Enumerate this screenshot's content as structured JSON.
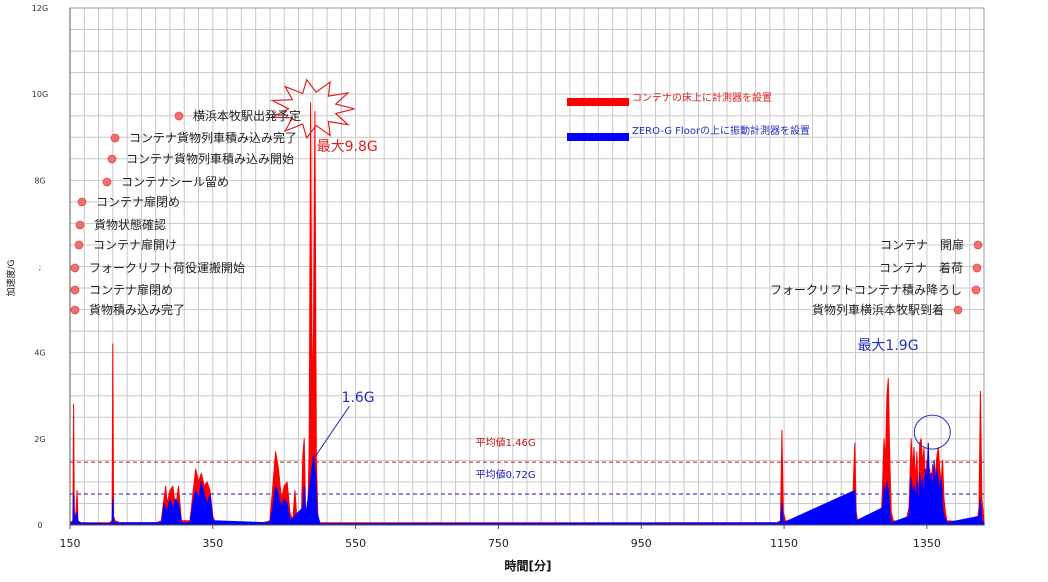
{
  "chart_data": {
    "type": "line",
    "title": "",
    "xlabel": "時間[分]",
    "ylabel": "加速度/G",
    "xlim": [
      150,
      1430
    ],
    "ylim": [
      0,
      12
    ],
    "x_ticks": [
      150,
      350,
      550,
      750,
      950,
      1150,
      1350
    ],
    "y_ticks": [
      {
        "value": 0,
        "label": "0"
      },
      {
        "value": 2,
        "label": "2G"
      },
      {
        "value": 4,
        "label": "4G"
      },
      {
        "value": 6,
        "label": ";"
      },
      {
        "value": 8,
        "label": "8G"
      },
      {
        "value": 10,
        "label": "10G"
      },
      {
        "value": 12,
        "label": "12G"
      }
    ],
    "grid": true,
    "legend_position": "top-center",
    "series": [
      {
        "name": "コンテナの床上に計測器を設置",
        "color": "#ff0000",
        "points": [
          [
            150,
            0.05
          ],
          [
            154,
            0.1
          ],
          [
            155,
            2.8
          ],
          [
            156,
            0.3
          ],
          [
            158,
            0.2
          ],
          [
            160,
            0.8
          ],
          [
            161,
            0.1
          ],
          [
            165,
            0.05
          ],
          [
            205,
            0.05
          ],
          [
            209,
            0.1
          ],
          [
            210,
            4.2
          ],
          [
            211,
            0.2
          ],
          [
            213,
            0.1
          ],
          [
            220,
            0.05
          ],
          [
            270,
            0.05
          ],
          [
            278,
            0.1
          ],
          [
            280,
            0.4
          ],
          [
            284,
            0.9
          ],
          [
            286,
            0.5
          ],
          [
            290,
            0.8
          ],
          [
            294,
            0.9
          ],
          [
            298,
            0.4
          ],
          [
            302,
            0.9
          ],
          [
            306,
            0.1
          ],
          [
            318,
            0.1
          ],
          [
            322,
            0.7
          ],
          [
            326,
            1.3
          ],
          [
            330,
            1.0
          ],
          [
            334,
            1.2
          ],
          [
            338,
            0.9
          ],
          [
            342,
            1.0
          ],
          [
            346,
            0.8
          ],
          [
            350,
            0.2
          ],
          [
            354,
            0.05
          ],
          [
            420,
            0.05
          ],
          [
            430,
            0.1
          ],
          [
            434,
            0.9
          ],
          [
            438,
            1.7
          ],
          [
            442,
            1.3
          ],
          [
            446,
            0.6
          ],
          [
            450,
            0.9
          ],
          [
            454,
            1.0
          ],
          [
            458,
            0.3
          ],
          [
            462,
            0.1
          ],
          [
            465,
            0.8
          ],
          [
            468,
            0.1
          ],
          [
            474,
            0.2
          ],
          [
            476,
            1.6
          ],
          [
            478,
            2.0
          ],
          [
            480,
            0.4
          ],
          [
            483,
            0.3
          ],
          [
            485,
            1.8
          ],
          [
            487,
            9.8
          ],
          [
            489,
            3.0
          ],
          [
            491,
            4.5
          ],
          [
            493,
            9.6
          ],
          [
            495,
            1.5
          ],
          [
            497,
            0.2
          ],
          [
            500,
            0.05
          ],
          [
            1140,
            0.05
          ],
          [
            1145,
            0.1
          ],
          [
            1147,
            2.2
          ],
          [
            1149,
            0.3
          ],
          [
            1152,
            0.1
          ],
          [
            1220,
            0.05
          ],
          [
            1225,
            0.2
          ],
          [
            1230,
            0.05
          ],
          [
            1245,
            0.05
          ],
          [
            1249,
            1.9
          ],
          [
            1251,
            0.3
          ],
          [
            1253,
            0.1
          ],
          [
            1270,
            0.05
          ],
          [
            1286,
            0.1
          ],
          [
            1288,
            1.0
          ],
          [
            1290,
            2.0
          ],
          [
            1292,
            1.5
          ],
          [
            1294,
            3.0
          ],
          [
            1296,
            3.4
          ],
          [
            1298,
            1.6
          ],
          [
            1300,
            0.3
          ],
          [
            1303,
            0.1
          ],
          [
            1320,
            0.05
          ],
          [
            1325,
            0.4
          ],
          [
            1328,
            2.0
          ],
          [
            1330,
            1.3
          ],
          [
            1332,
            1.8
          ],
          [
            1334,
            1.0
          ],
          [
            1336,
            1.7
          ],
          [
            1338,
            0.5
          ],
          [
            1340,
            1.9
          ],
          [
            1342,
            2.0
          ],
          [
            1344,
            1.4
          ],
          [
            1346,
            1.8
          ],
          [
            1348,
            0.9
          ],
          [
            1350,
            1.5
          ],
          [
            1352,
            1.1
          ],
          [
            1354,
            1.3
          ],
          [
            1356,
            0.9
          ],
          [
            1358,
            1.4
          ],
          [
            1360,
            0.7
          ],
          [
            1362,
            1.2
          ],
          [
            1364,
            1.6
          ],
          [
            1366,
            1.8
          ],
          [
            1368,
            1.3
          ],
          [
            1370,
            1.0
          ],
          [
            1372,
            1.5
          ],
          [
            1374,
            0.6
          ],
          [
            1376,
            0.3
          ],
          [
            1378,
            0.1
          ],
          [
            1420,
            0.05
          ],
          [
            1423,
            0.4
          ],
          [
            1425,
            3.1
          ],
          [
            1427,
            0.6
          ],
          [
            1430,
            0.1
          ]
        ]
      },
      {
        "name": "ZERO-G Floorの上に振動計測器を設置",
        "color": "#0000ff",
        "points": [
          [
            150,
            0.03
          ],
          [
            154,
            0.05
          ],
          [
            155,
            0.7
          ],
          [
            156,
            0.1
          ],
          [
            160,
            0.3
          ],
          [
            161,
            0.05
          ],
          [
            205,
            0.03
          ],
          [
            209,
            0.05
          ],
          [
            210,
            0.6
          ],
          [
            211,
            0.05
          ],
          [
            278,
            0.05
          ],
          [
            282,
            0.5
          ],
          [
            286,
            0.3
          ],
          [
            290,
            0.6
          ],
          [
            294,
            0.4
          ],
          [
            298,
            0.6
          ],
          [
            302,
            0.5
          ],
          [
            306,
            0.05
          ],
          [
            318,
            0.05
          ],
          [
            322,
            0.5
          ],
          [
            326,
            0.8
          ],
          [
            330,
            0.6
          ],
          [
            334,
            1.0
          ],
          [
            338,
            0.7
          ],
          [
            342,
            0.5
          ],
          [
            346,
            0.7
          ],
          [
            350,
            0.1
          ],
          [
            430,
            0.05
          ],
          [
            434,
            0.4
          ],
          [
            438,
            0.9
          ],
          [
            442,
            0.7
          ],
          [
            446,
            0.4
          ],
          [
            450,
            0.6
          ],
          [
            454,
            0.5
          ],
          [
            458,
            0.1
          ],
          [
            476,
            0.4
          ],
          [
            478,
            0.9
          ],
          [
            480,
            0.2
          ],
          [
            485,
            0.8
          ],
          [
            488,
            1.2
          ],
          [
            491,
            1.6
          ],
          [
            494,
            1.2
          ],
          [
            496,
            0.3
          ],
          [
            500,
            0.03
          ],
          [
            1145,
            0.05
          ],
          [
            1147,
            0.5
          ],
          [
            1149,
            0.05
          ],
          [
            1249,
            0.8
          ],
          [
            1251,
            0.1
          ],
          [
            1288,
            0.4
          ],
          [
            1290,
            0.9
          ],
          [
            1292,
            0.7
          ],
          [
            1294,
            1.0
          ],
          [
            1296,
            0.8
          ],
          [
            1298,
            0.3
          ],
          [
            1300,
            0.05
          ],
          [
            1325,
            0.2
          ],
          [
            1328,
            1.1
          ],
          [
            1330,
            0.7
          ],
          [
            1332,
            0.9
          ],
          [
            1334,
            0.6
          ],
          [
            1336,
            1.0
          ],
          [
            1338,
            0.3
          ],
          [
            1340,
            1.2
          ],
          [
            1342,
            0.8
          ],
          [
            1344,
            1.1
          ],
          [
            1346,
            0.6
          ],
          [
            1348,
            1.3
          ],
          [
            1350,
            1.0
          ],
          [
            1352,
            1.9
          ],
          [
            1354,
            0.8
          ],
          [
            1356,
            1.2
          ],
          [
            1358,
            0.7
          ],
          [
            1360,
            1.5
          ],
          [
            1362,
            0.9
          ],
          [
            1364,
            1.3
          ],
          [
            1366,
            1.0
          ],
          [
            1368,
            0.8
          ],
          [
            1370,
            1.1
          ],
          [
            1372,
            0.4
          ],
          [
            1374,
            0.2
          ],
          [
            1378,
            0.05
          ],
          [
            1423,
            0.2
          ],
          [
            1425,
            0.6
          ],
          [
            1427,
            0.1
          ],
          [
            1430,
            0.05
          ]
        ]
      }
    ],
    "averages": [
      {
        "label": "平均値1.46G",
        "value": 1.46,
        "color": "#c01818"
      },
      {
        "label": "平均値0.72G",
        "value": 0.72,
        "color": "#1818c0"
      }
    ],
    "annotations": {
      "max_red": {
        "label": "最大9.8G",
        "x": 487,
        "value": 9.8
      },
      "peak_blue": {
        "label": "1.6G",
        "x": 491,
        "value": 1.6
      },
      "max_blue": {
        "label": "最大1.9G",
        "x": 1352,
        "value": 1.9
      }
    },
    "events_left": [
      {
        "label": "横浜本牧駅出発予定"
      },
      {
        "label": "コンテナ貨物列車積み込み完了"
      },
      {
        "label": "コンテナ貨物列車積み込み開始"
      },
      {
        "label": "コンテナシール留め"
      },
      {
        "label": "コンテナ扉閉め"
      },
      {
        "label": "貨物状態確認"
      },
      {
        "label": "コンテナ扉開け"
      },
      {
        "label": "フォークリフト荷役運搬開始"
      },
      {
        "label": "コンテナ扉閉め"
      },
      {
        "label": "貨物積み込み完了"
      }
    ],
    "events_right": [
      {
        "label": "コンテナ　開扉"
      },
      {
        "label": "コンテナ　着荷"
      },
      {
        "label": "フォークリフトコンテナ積み降ろし"
      },
      {
        "label": "貨物列車横浜本牧駅到着"
      }
    ]
  }
}
